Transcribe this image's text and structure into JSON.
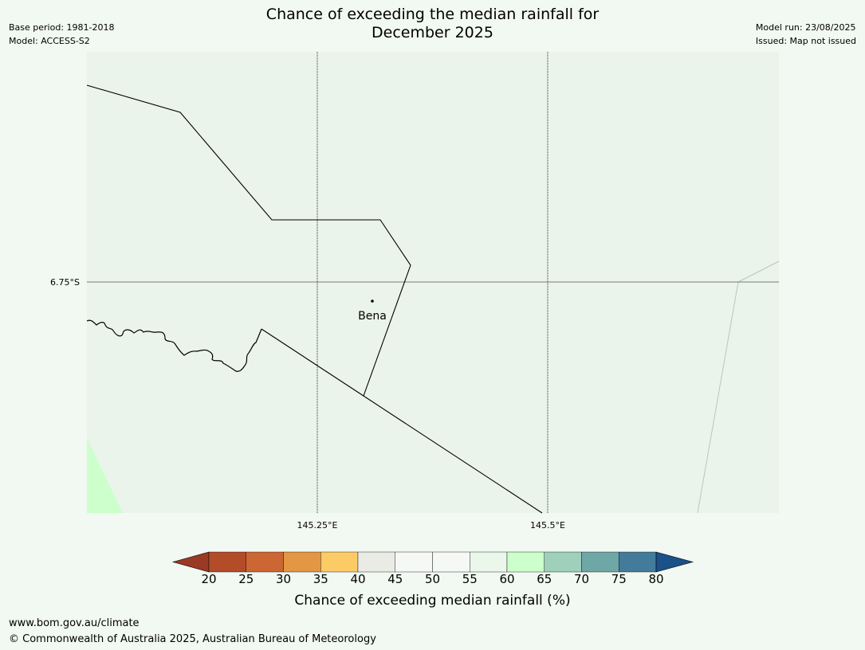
{
  "title_line1": "Chance of exceeding the median rainfall for",
  "title_line2": "December 2025",
  "meta_left": {
    "base_period": "Base period: 1981-2018",
    "model": "Model: ACCESS-S2"
  },
  "meta_right": {
    "model_run": "Model run: 23/08/2025",
    "issued": "Issued: Map not issued"
  },
  "map": {
    "lat_label": "6.75°S",
    "lon_labels": [
      "145.25°E",
      "145.5°E"
    ],
    "place": "Bena",
    "colors": {
      "ocean": "#eaf4ea",
      "land_highlight": "#ccffcc",
      "background": "#f2f8f2"
    }
  },
  "colorbar": {
    "title": "Chance of exceeding median rainfall (%)",
    "ticks": [
      "20",
      "25",
      "30",
      "35",
      "40",
      "45",
      "50",
      "55",
      "60",
      "65",
      "70",
      "75",
      "80"
    ],
    "colors": [
      "#9a3a24",
      "#b34c28",
      "#cc6633",
      "#e39744",
      "#fdcb66",
      "#ebebe6",
      "#f6f8f6",
      "#f6f8f6",
      "#eaf7ea",
      "#ccffcc",
      "#9ed0bb",
      "#6fa6a6",
      "#437b9b",
      "#1b5088"
    ]
  },
  "footer": {
    "url": "www.bom.gov.au/climate",
    "copyright": "© Commonwealth of Australia 2025, Australian Bureau of Meteorology"
  }
}
